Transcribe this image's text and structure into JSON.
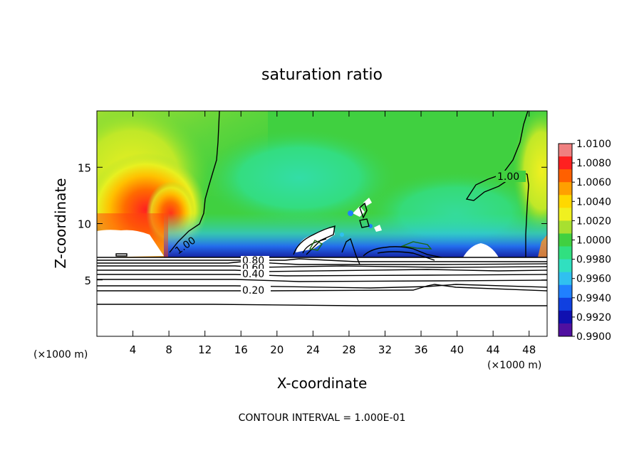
{
  "chart_data": {
    "type": "heatmap",
    "title": "saturation ratio",
    "xlabel": "X-coordinate",
    "ylabel": "Z-coordinate",
    "x_unit_left": "(×1000 m)",
    "x_unit_right": "(×1000 m)",
    "footer": "CONTOUR INTERVAL = 1.000E-01",
    "xlim": [
      0,
      50
    ],
    "ylim": [
      0,
      20
    ],
    "x_ticks": [
      4,
      8,
      12,
      16,
      20,
      24,
      28,
      32,
      36,
      40,
      44,
      48
    ],
    "y_ticks": [
      5,
      10,
      15
    ],
    "colorbar": {
      "min": 0.99,
      "max": 1.01,
      "tick_labels": [
        "1.0100",
        "1.0080",
        "1.0060",
        "1.0040",
        "1.0020",
        "1.0000",
        "0.9980",
        "0.9960",
        "0.9940",
        "0.9920",
        "0.9900"
      ],
      "colors": [
        "#f08080",
        "#ff2020",
        "#ff6000",
        "#ffa000",
        "#ffd800",
        "#f0f020",
        "#a8e030",
        "#40d040",
        "#30e080",
        "#30e0c0",
        "#30c0f0",
        "#2080ff",
        "#1040e0",
        "#1010b0",
        "#5010a0"
      ]
    },
    "contour_labels": [
      "1.00",
      "1.00",
      "0.80",
      "0.60",
      "0.40",
      "0.20"
    ]
  },
  "colors": {
    "background": "#ffffff",
    "axis": "#000000",
    "field_base": "#40d040",
    "cloud_fill": "#ffffff"
  }
}
